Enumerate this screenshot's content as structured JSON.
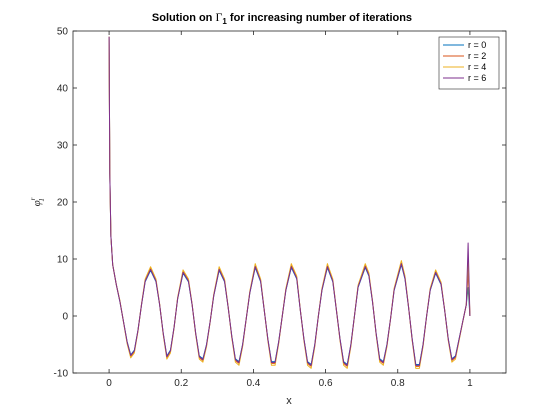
{
  "chart_data": {
    "type": "line",
    "title_main": "Solution on ",
    "title_symbol": "Γ",
    "title_sub": "1",
    "title_rest": " for increasing number of iterations",
    "xlabel": "x",
    "ylabel_base": "φ",
    "ylabel_sup": "r",
    "ylabel_sub": "1",
    "xlim": [
      -0.1,
      1.1
    ],
    "ylim": [
      -10,
      50
    ],
    "xticks": [
      0,
      0.2,
      0.4,
      0.6,
      0.8,
      1
    ],
    "yticks": [
      -10,
      0,
      10,
      20,
      30,
      40,
      50
    ],
    "xtick_labels": [
      "0",
      "0.2",
      "0.4",
      "0.6",
      "0.8",
      "1"
    ],
    "ytick_labels": [
      "-10",
      "0",
      "10",
      "20",
      "30",
      "40",
      "50"
    ],
    "grid": false,
    "legend_position": "top-right",
    "series": [
      {
        "name": "r = 0",
        "color": "#0072BD",
        "amp_scale": 1.0,
        "end_spike": 0.0
      },
      {
        "name": "r = 2",
        "color": "#D95319",
        "amp_scale": 1.04,
        "end_spike": 8.0
      },
      {
        "name": "r = 4",
        "color": "#EDB120",
        "amp_scale": 1.08,
        "end_spike": 10.0
      },
      {
        "name": "r = 6",
        "color": "#7E2F8E",
        "amp_scale": 1.02,
        "end_spike": 12.8
      }
    ],
    "base_points": [
      [
        0.0,
        49.0
      ],
      [
        0.002,
        25.0
      ],
      [
        0.005,
        14.0
      ],
      [
        0.01,
        9.0
      ],
      [
        0.02,
        5.5
      ],
      [
        0.03,
        2.5
      ],
      [
        0.04,
        -1.0
      ],
      [
        0.05,
        -4.5
      ],
      [
        0.06,
        -6.8
      ],
      [
        0.07,
        -6.0
      ],
      [
        0.08,
        -2.5
      ],
      [
        0.09,
        2.0
      ],
      [
        0.1,
        6.0
      ],
      [
        0.115,
        8.0
      ],
      [
        0.13,
        6.0
      ],
      [
        0.14,
        2.0
      ],
      [
        0.15,
        -3.0
      ],
      [
        0.16,
        -7.0
      ],
      [
        0.17,
        -6.0
      ],
      [
        0.18,
        -2.0
      ],
      [
        0.19,
        3.0
      ],
      [
        0.205,
        7.5
      ],
      [
        0.22,
        6.0
      ],
      [
        0.23,
        2.0
      ],
      [
        0.24,
        -3.0
      ],
      [
        0.25,
        -7.0
      ],
      [
        0.26,
        -7.5
      ],
      [
        0.27,
        -5.0
      ],
      [
        0.28,
        -1.0
      ],
      [
        0.29,
        3.5
      ],
      [
        0.305,
        8.0
      ],
      [
        0.32,
        6.0
      ],
      [
        0.33,
        1.5
      ],
      [
        0.34,
        -3.5
      ],
      [
        0.35,
        -7.5
      ],
      [
        0.36,
        -8.0
      ],
      [
        0.37,
        -5.0
      ],
      [
        0.38,
        -0.5
      ],
      [
        0.39,
        4.0
      ],
      [
        0.405,
        8.5
      ],
      [
        0.42,
        6.0
      ],
      [
        0.43,
        1.0
      ],
      [
        0.44,
        -4.0
      ],
      [
        0.45,
        -8.0
      ],
      [
        0.46,
        -8.0
      ],
      [
        0.47,
        -4.5
      ],
      [
        0.48,
        0.0
      ],
      [
        0.49,
        4.5
      ],
      [
        0.505,
        8.5
      ],
      [
        0.52,
        6.5
      ],
      [
        0.53,
        1.0
      ],
      [
        0.54,
        -4.0
      ],
      [
        0.55,
        -8.0
      ],
      [
        0.56,
        -8.5
      ],
      [
        0.57,
        -5.0
      ],
      [
        0.58,
        0.0
      ],
      [
        0.59,
        4.5
      ],
      [
        0.605,
        8.5
      ],
      [
        0.62,
        6.0
      ],
      [
        0.63,
        1.0
      ],
      [
        0.64,
        -4.0
      ],
      [
        0.65,
        -8.0
      ],
      [
        0.66,
        -8.5
      ],
      [
        0.67,
        -5.0
      ],
      [
        0.68,
        0.0
      ],
      [
        0.69,
        5.0
      ],
      [
        0.71,
        8.5
      ],
      [
        0.72,
        7.0
      ],
      [
        0.73,
        2.5
      ],
      [
        0.74,
        -3.0
      ],
      [
        0.75,
        -7.5
      ],
      [
        0.76,
        -8.0
      ],
      [
        0.77,
        -5.0
      ],
      [
        0.78,
        -0.5
      ],
      [
        0.79,
        4.5
      ],
      [
        0.81,
        9.0
      ],
      [
        0.82,
        6.5
      ],
      [
        0.83,
        1.5
      ],
      [
        0.84,
        -4.0
      ],
      [
        0.85,
        -8.5
      ],
      [
        0.86,
        -8.5
      ],
      [
        0.87,
        -5.0
      ],
      [
        0.88,
        0.0
      ],
      [
        0.89,
        4.5
      ],
      [
        0.905,
        7.5
      ],
      [
        0.92,
        5.5
      ],
      [
        0.93,
        1.0
      ],
      [
        0.94,
        -4.0
      ],
      [
        0.95,
        -7.5
      ],
      [
        0.96,
        -7.0
      ],
      [
        0.97,
        -4.0
      ],
      [
        0.98,
        -1.0
      ],
      [
        0.99,
        2.0
      ],
      [
        0.995,
        5.0
      ],
      [
        1.0,
        0.0
      ]
    ]
  }
}
